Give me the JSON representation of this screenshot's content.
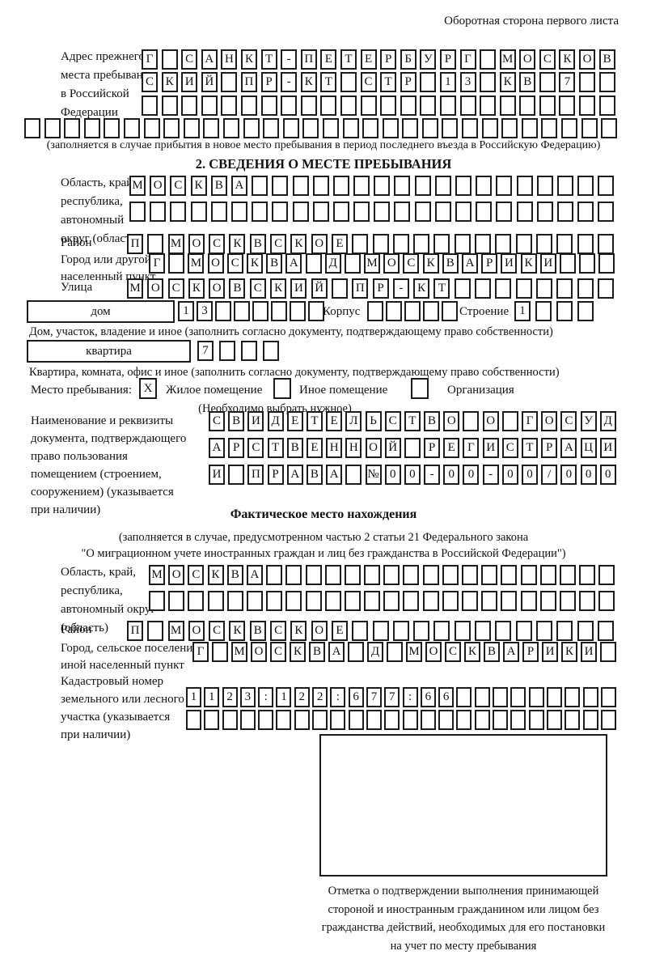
{
  "header": {
    "note": "Оборотная сторона первого листа"
  },
  "prev_address": {
    "label_lines": [
      "Адрес прежнего",
      "места пребывания",
      "в Российской",
      "Федерации"
    ],
    "row1": {
      "text": "Г САНКТ-ПЕТЕРБУРГ МОСКОВ",
      "cells": 24
    },
    "row2": {
      "text": "СКИЙ ПР-КТ СТР 13 КВ 7",
      "cells": 24
    },
    "row3": {
      "text": "",
      "cells": 24
    },
    "row4": {
      "text": "",
      "cells": 30
    },
    "note": "(заполняется в случае прибытия в новое место пребывания в период последнего въезда в Российскую Федерацию)"
  },
  "section2": {
    "title": "2. СВЕДЕНИЯ О МЕСТЕ ПРЕБЫВАНИЯ",
    "region": {
      "label_lines": [
        "Область, край,",
        "республика,",
        "автономный",
        "округ (область)"
      ],
      "row1": {
        "text": "МОСКВА",
        "cells": 24
      },
      "row2": {
        "text": "",
        "cells": 24
      }
    },
    "district": {
      "label": "Район",
      "row": {
        "text": "П МОСКВСКОЕ",
        "cells": 24
      }
    },
    "city": {
      "label_lines": [
        "Город или другой",
        "населенный пункт"
      ],
      "row": {
        "text": "Г МОСКВА Д МОСКВАРИКИ",
        "cells": 24
      }
    },
    "street": {
      "label": "Улица",
      "row": {
        "text": "МОСКОВСКИЙ ПР-КТ",
        "cells": 24
      }
    },
    "house": {
      "field_label": "дом",
      "grid": {
        "text": "13",
        "cells": 8
      },
      "korpus_label": "Корпус",
      "korpus_grid": {
        "text": "",
        "cells": 5
      },
      "stroenie_label": "Строение",
      "stroenie_grid": {
        "text": "1",
        "cells": 4
      },
      "note": "Дом, участок, владение и иное (заполнить согласно документу, подтверждающему право собственности)"
    },
    "apartment": {
      "field_label": "квартира",
      "grid": {
        "text": "7",
        "cells": 4
      },
      "note": "Квартира, комната, офис и иное (заполнить согласно документу, подтверждающему право собственности)"
    },
    "stay_type": {
      "label": "Место пребывания:",
      "options": [
        {
          "label": "Жилое помещение",
          "mark": "X"
        },
        {
          "label": "Иное помещение",
          "mark": ""
        },
        {
          "label": "Организация",
          "mark": ""
        }
      ],
      "note": "(Необходимо выбрать нужное)"
    },
    "doc": {
      "label_lines": [
        "Наименование и реквизиты",
        "документа, подтверждающего",
        "право пользования",
        "помещением (строением,",
        "сооружением) (указывается",
        "при наличии)"
      ],
      "row1": {
        "text": "СВИДЕТЕЛЬСТВО О ГОСУД",
        "cells": 21
      },
      "row2": {
        "text": "АРСТВЕННОЙ РЕГИСТРАЦИ",
        "cells": 21
      },
      "row3": {
        "text": "И ПРАВА №00-00-00/000",
        "cells": 21
      }
    }
  },
  "actual_location": {
    "title": "Фактическое место нахождения",
    "note_lines": [
      "(заполняется в случае, предусмотренном частью 2 статьи 21 Федерального закона",
      "\"О миграционном учете иностранных граждан и лиц без гражданства в Российской Федерации\")"
    ],
    "region": {
      "label_lines": [
        "Область, край,",
        "республика,",
        "автономный округ",
        "(область)"
      ],
      "row1": {
        "text": "МОСКВА",
        "cells": 24
      },
      "row2": {
        "text": "",
        "cells": 24
      }
    },
    "district": {
      "label": "Район",
      "row": {
        "text": "П МОСКВСКОЕ",
        "cells": 24
      }
    },
    "city": {
      "label_lines": [
        "Город, сельское поселение,",
        "иной населенный пункт"
      ],
      "row": {
        "text": "Г МОСКВА Д МОСКВАРИКИ",
        "cells": 22
      }
    },
    "cadastre": {
      "label_lines": [
        "Кадастровый номер",
        "земельного или лесного",
        "участка (указывается",
        "при наличии)"
      ],
      "row1": {
        "text": "1123:122:677:66",
        "cells": 24
      },
      "row2": {
        "text": "",
        "cells": 24
      }
    },
    "stamp_caption_lines": [
      "Отметка о подтверждении выполнения принимающей",
      "стороной и иностранным гражданином или лицом без",
      "гражданства действий, необходимых для его постановки",
      "на учет по месту пребывания"
    ]
  }
}
